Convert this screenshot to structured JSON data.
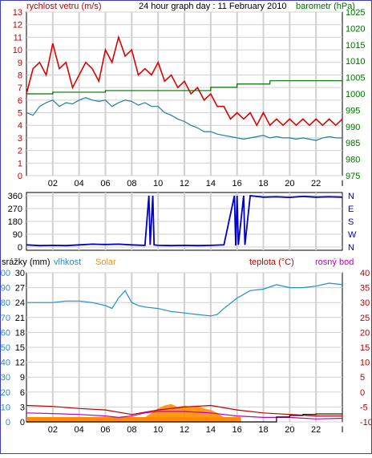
{
  "title": "24 hour graph day : 11 February 2010",
  "colors": {
    "wind_avg": "#1f7fa0",
    "wind_gust": "#e00000",
    "baro": "#007000",
    "dir": "#0000c0",
    "humidity": "#1f8fd0",
    "solar": "#ff8c00",
    "rain": "#000000",
    "temp": "#c00000",
    "dew": "#c000c0",
    "grid": "#d0d0d0",
    "axis_left": "#c00000",
    "axis_right": "#007000"
  },
  "chart_data": [
    {
      "id": "wind",
      "type": "line",
      "title": "24 hour graph day : 11 February 2010",
      "ylabel": "rychlost vetru (m/s)",
      "y2label": "barometr (hPa)",
      "ylim": [
        0,
        13
      ],
      "yticks": [
        0,
        1,
        2,
        3,
        4,
        5,
        6,
        7,
        8,
        9,
        10,
        11,
        12,
        13
      ],
      "y2lim": [
        975,
        1025
      ],
      "y2ticks": [
        975,
        980,
        985,
        990,
        995,
        1000,
        1005,
        1010,
        1015,
        1020,
        1025
      ],
      "xlim": [
        0,
        24
      ],
      "xticks": [
        "02",
        "04",
        "06",
        "08",
        "10",
        "12",
        "14",
        "16",
        "18",
        "20",
        "22"
      ],
      "grid": true,
      "series": [
        {
          "name": "gust",
          "axis": "left",
          "x": [
            0,
            0.5,
            1,
            1.5,
            2,
            2.5,
            3,
            3.5,
            4,
            4.5,
            5,
            5.5,
            6,
            6.5,
            7,
            7.5,
            8,
            8.5,
            9,
            9.5,
            10,
            10.5,
            11,
            11.5,
            12,
            12.5,
            13,
            13.5,
            14,
            14.5,
            15,
            15.5,
            16,
            16.5,
            17,
            17.5,
            18,
            18.5,
            19,
            19.5,
            20,
            20.5,
            21,
            21.5,
            22,
            22.5,
            23,
            23.5,
            24
          ],
          "values": [
            6.5,
            8.5,
            9,
            8,
            10.5,
            8.5,
            9,
            7,
            8,
            9,
            8.5,
            7.5,
            10,
            9,
            11,
            9.5,
            10,
            8,
            8.5,
            8,
            9,
            7.5,
            8,
            7,
            7.5,
            6.5,
            7,
            6,
            6.5,
            5.5,
            5.5,
            4.5,
            5,
            4.5,
            5,
            4,
            5,
            4,
            4.5,
            4,
            4.5,
            4,
            4.5,
            4,
            4.5,
            4,
            4.5,
            4,
            4.5
          ]
        },
        {
          "name": "average",
          "axis": "left",
          "x": [
            0,
            0.5,
            1,
            1.5,
            2,
            2.5,
            3,
            3.5,
            4,
            4.5,
            5,
            5.5,
            6,
            6.5,
            7,
            7.5,
            8,
            8.5,
            9,
            9.5,
            10,
            10.5,
            11,
            11.5,
            12,
            12.5,
            13,
            13.5,
            14,
            14.5,
            15,
            15.5,
            16,
            16.5,
            17,
            17.5,
            18,
            18.5,
            19,
            19.5,
            20,
            20.5,
            21,
            21.5,
            22,
            22.5,
            23,
            23.5,
            24
          ],
          "values": [
            5,
            4.8,
            5.5,
            5.8,
            6,
            5.5,
            5.8,
            5.7,
            6,
            6.2,
            6,
            5.9,
            6,
            5.5,
            5.8,
            6,
            5.9,
            5.6,
            5.8,
            5.5,
            5.5,
            5,
            4.8,
            4.5,
            4.3,
            4,
            3.8,
            3.5,
            3.5,
            3.3,
            3.2,
            3.1,
            3,
            2.9,
            3,
            3.1,
            3.2,
            3,
            3.1,
            3,
            3,
            2.9,
            3,
            2.9,
            2.8,
            3,
            3.1,
            3,
            3
          ]
        },
        {
          "name": "pressure",
          "axis": "right",
          "x": [
            0,
            2,
            4,
            6,
            8,
            10,
            12,
            13.5,
            14,
            16,
            18,
            18.5,
            20,
            22,
            24
          ],
          "values": [
            1000,
            1000.5,
            1000.5,
            1001,
            1001,
            1001,
            1001,
            1001,
            1002,
            1003,
            1003,
            1004,
            1004,
            1004,
            1004
          ]
        }
      ]
    },
    {
      "id": "direction",
      "type": "line",
      "ylim": [
        0,
        360
      ],
      "yticks": [
        "0",
        "90",
        "180",
        "270",
        "360"
      ],
      "y2ticks": [
        "N",
        "E",
        "S",
        "W",
        "N"
      ],
      "xlim": [
        0,
        24
      ],
      "grid": true,
      "series": [
        {
          "name": "direction",
          "x": [
            0,
            1,
            2,
            3,
            4,
            5,
            6,
            7,
            8,
            9,
            9.3,
            9.4,
            9.6,
            9.7,
            10,
            11,
            12,
            13,
            14,
            15,
            15.8,
            15.9,
            16,
            16.1,
            16.5,
            16.6,
            17,
            18,
            19,
            20,
            21,
            22,
            23,
            24
          ],
          "values": [
            15,
            10,
            12,
            10,
            15,
            20,
            18,
            20,
            15,
            12,
            360,
            15,
            360,
            15,
            12,
            10,
            12,
            10,
            12,
            15,
            360,
            10,
            360,
            15,
            360,
            15,
            360,
            350,
            352,
            348,
            355,
            350,
            352,
            350
          ]
        }
      ]
    },
    {
      "id": "env",
      "type": "line",
      "ylabel": "srážky (mm)",
      "ylabel2": "vlhkost",
      "ylabel3": "Solar",
      "y2label": "teplota (°C)",
      "y2label2": "rosný bod",
      "rain_ticks": [
        "30",
        "27",
        "24",
        "21",
        "18",
        "15",
        "12",
        "9",
        "6",
        "3",
        "0"
      ],
      "hum_ticks": [
        "100",
        "90",
        "80",
        "70",
        "60",
        "50",
        "40",
        "30",
        "20",
        "10",
        "0"
      ],
      "temp_ticks": [
        "40",
        "35",
        "30",
        "25",
        "20",
        "15",
        "10",
        "5",
        "0",
        "-5",
        "-10"
      ],
      "ylim": [
        0,
        100
      ],
      "y2lim": [
        -10,
        40
      ],
      "xlim": [
        0,
        24
      ],
      "grid": true,
      "series": [
        {
          "name": "humidity",
          "x": [
            0,
            1,
            2,
            3,
            4,
            5,
            6,
            6.5,
            7,
            7.5,
            8,
            8.5,
            9,
            10,
            11,
            12,
            13,
            14,
            14.5,
            15,
            16,
            17,
            18,
            19,
            20,
            21,
            22,
            23,
            24
          ],
          "values": [
            80,
            80,
            80,
            81,
            81,
            80,
            78,
            76,
            83,
            88,
            80,
            78,
            77,
            76,
            74,
            73,
            72,
            71,
            72,
            76,
            83,
            88,
            89,
            92,
            90,
            90,
            91,
            93,
            92
          ]
        },
        {
          "name": "solar",
          "x": [
            0,
            8,
            8.5,
            9,
            9.5,
            10,
            10.5,
            11,
            11.5,
            12,
            12.5,
            13,
            13.5,
            14,
            14.5,
            15,
            15.5,
            16,
            24
          ],
          "values": [
            0,
            0,
            1,
            3,
            6,
            9,
            11,
            12,
            10,
            11,
            10,
            11,
            9,
            8,
            6,
            3,
            1,
            0,
            0
          ]
        },
        {
          "name": "temp",
          "x": [
            0,
            2,
            4,
            6,
            8,
            10,
            12,
            14,
            16,
            18,
            20,
            22,
            24
          ],
          "values": [
            -4.5,
            -4.8,
            -5.5,
            -6,
            -7.5,
            -6,
            -5,
            -4.5,
            -6,
            -7,
            -7.5,
            -8,
            -8
          ]
        },
        {
          "name": "dewpoint",
          "x": [
            0,
            2,
            4,
            6,
            7,
            8,
            9,
            10,
            12,
            14,
            16,
            18,
            20,
            22,
            24
          ],
          "values": [
            -7,
            -7.2,
            -7.5,
            -8,
            -8.5,
            -8,
            -7,
            -6.5,
            -6.5,
            -7,
            -8,
            -8.5,
            -8.5,
            -9,
            -8.8
          ]
        },
        {
          "name": "rain",
          "x": [
            0,
            18,
            19,
            20,
            21,
            22,
            23,
            24
          ],
          "values": [
            0,
            0,
            1,
            1.3,
            1.5,
            1.6,
            1.6,
            1.6
          ]
        }
      ]
    }
  ]
}
